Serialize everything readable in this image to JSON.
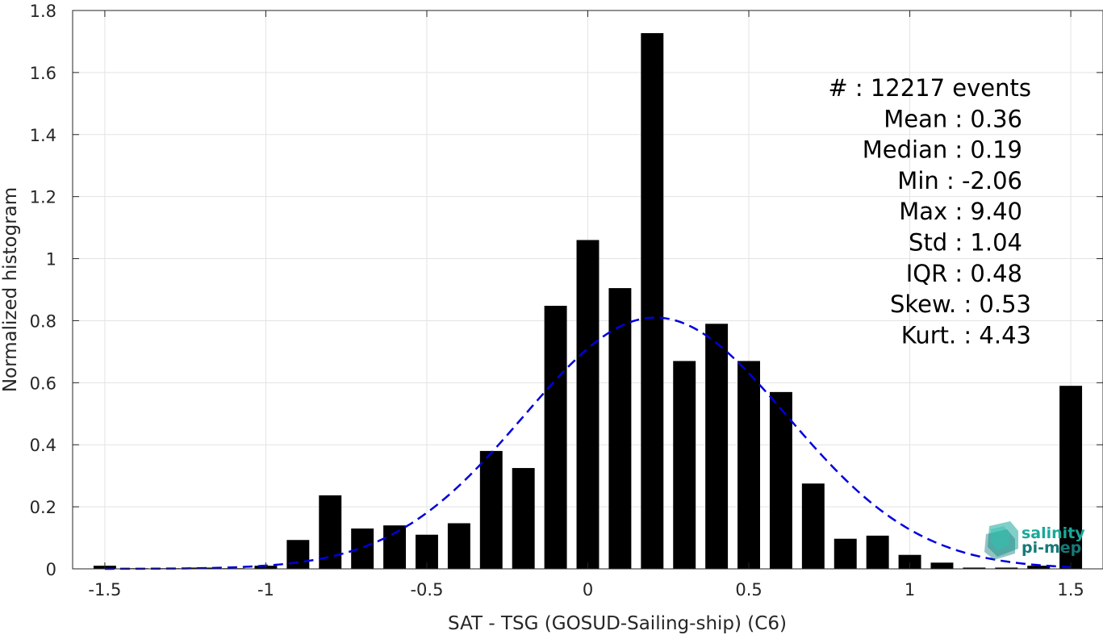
{
  "chart_data": {
    "type": "bar",
    "xlabel": "SAT - TSG (GOSUD-Sailing-ship) (C6)",
    "ylabel": "Normalized histogram",
    "xlim": [
      -1.6,
      1.6
    ],
    "ylim": [
      0,
      1.8
    ],
    "grid": true,
    "xticks": [
      -1.5,
      -1,
      -0.5,
      0,
      0.5,
      1,
      1.5
    ],
    "xtick_labels": [
      "-1.5",
      "-1",
      "-0.5",
      "0",
      "0.5",
      "1",
      "1.5"
    ],
    "yticks": [
      0,
      0.2,
      0.4,
      0.6,
      0.8,
      1,
      1.2,
      1.4,
      1.6,
      1.8
    ],
    "ytick_labels": [
      "0",
      "0.2",
      "0.4",
      "0.6",
      "0.8",
      "1",
      "1.2",
      "1.4",
      "1.6",
      "1.8"
    ],
    "bin_width": 0.1,
    "bar_width": 0.07,
    "bar_color": "#000000",
    "bins": [
      {
        "x": -1.5,
        "value": 0.01
      },
      {
        "x": -1.4,
        "value": 0.002
      },
      {
        "x": -1.3,
        "value": 0.002
      },
      {
        "x": -1.2,
        "value": 0.004
      },
      {
        "x": -1.1,
        "value": 0.002
      },
      {
        "x": -1.0,
        "value": 0.01
      },
      {
        "x": -0.9,
        "value": 0.093
      },
      {
        "x": -0.8,
        "value": 0.237
      },
      {
        "x": -0.7,
        "value": 0.13
      },
      {
        "x": -0.6,
        "value": 0.14
      },
      {
        "x": -0.5,
        "value": 0.11
      },
      {
        "x": -0.4,
        "value": 0.147
      },
      {
        "x": -0.3,
        "value": 0.38
      },
      {
        "x": -0.2,
        "value": 0.325
      },
      {
        "x": -0.1,
        "value": 0.848
      },
      {
        "x": 0.0,
        "value": 1.06
      },
      {
        "x": 0.1,
        "value": 0.905
      },
      {
        "x": 0.2,
        "value": 1.727
      },
      {
        "x": 0.3,
        "value": 0.67
      },
      {
        "x": 0.4,
        "value": 0.79
      },
      {
        "x": 0.5,
        "value": 0.67
      },
      {
        "x": 0.6,
        "value": 0.57
      },
      {
        "x": 0.7,
        "value": 0.275
      },
      {
        "x": 0.8,
        "value": 0.097
      },
      {
        "x": 0.9,
        "value": 0.107
      },
      {
        "x": 1.0,
        "value": 0.045
      },
      {
        "x": 1.1,
        "value": 0.02
      },
      {
        "x": 1.2,
        "value": 0.004
      },
      {
        "x": 1.3,
        "value": 0.004
      },
      {
        "x": 1.4,
        "value": 0.01
      },
      {
        "x": 1.5,
        "value": 0.59
      }
    ],
    "fit_curve": {
      "style": "dashed",
      "color": "#0000dd",
      "peak": 0.81,
      "mean": 0.21,
      "sigma": 0.41,
      "x_range": [
        -1.5,
        1.5
      ]
    },
    "annotations": [
      "#  : 12217 events",
      "Mean : 0.36",
      "Median : 0.19",
      "Min : -2.06",
      "Max : 9.40",
      "Std : 1.04",
      "IQR : 0.48",
      "Skew. : 0.53",
      "Kurt. : 4.43"
    ]
  },
  "logo": {
    "line1": "salinity",
    "line2": "pi-mep",
    "color1": "#1aa89a",
    "color2": "#147a78"
  }
}
